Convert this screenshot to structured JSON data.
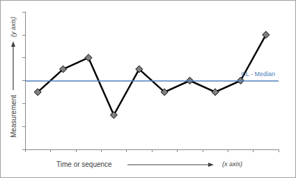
{
  "chart_data": {
    "type": "line",
    "xlabel": "Time or sequence",
    "ylabel": "Measurement",
    "axis_notes": {
      "x": "(x axis)",
      "y": "(y axis)"
    },
    "categories": [
      null,
      null,
      null,
      null,
      null,
      null,
      null,
      null,
      null,
      null
    ],
    "values": [
      2.5,
      3.5,
      4,
      1.5,
      3.5,
      2.5,
      3,
      2.5,
      3,
      5
    ],
    "color": "#000000",
    "marker": "diamond",
    "median": {
      "value": 3,
      "label": "CL - Median",
      "color": "#4f81bd"
    },
    "ylim": [
      0,
      6
    ],
    "yticks": [
      0,
      1,
      2,
      3,
      4,
      5,
      6
    ],
    "grid": false,
    "tick_labels": false
  }
}
